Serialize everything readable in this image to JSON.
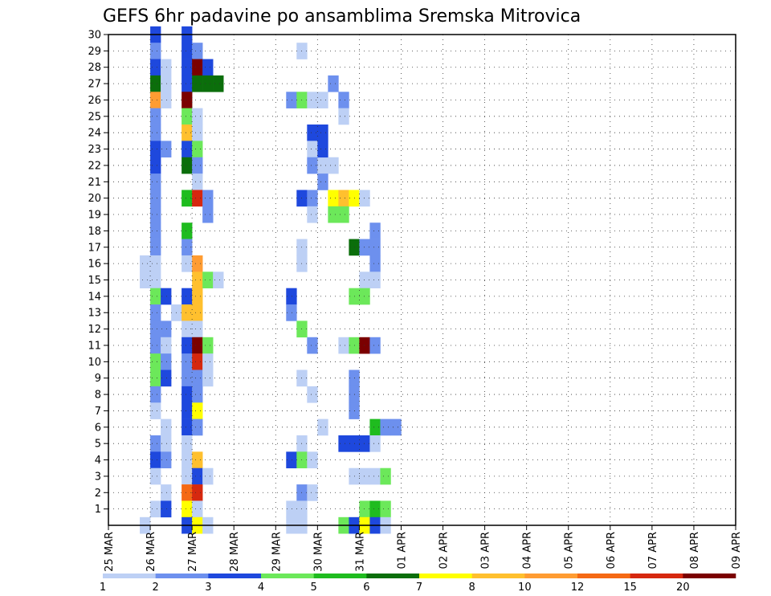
{
  "chart_data": {
    "type": "heatmap",
    "title": "GEFS 6hr padavine po ansamblima Sremska Mitrovica",
    "xlabel": "",
    "ylabel": "",
    "x_ticks": [
      "25 MAR",
      "26 MAR",
      "27 MAR",
      "28 MAR",
      "29 MAR",
      "30 MAR",
      "31 MAR",
      "01 APR",
      "02 APR",
      "03 APR",
      "04 APR",
      "05 APR",
      "06 APR",
      "07 APR",
      "08 APR",
      "09 APR"
    ],
    "time_steps_per_day": 4,
    "y_range": [
      1,
      30
    ],
    "y_ticks": [
      1,
      2,
      3,
      4,
      5,
      6,
      7,
      8,
      9,
      10,
      11,
      12,
      13,
      14,
      15,
      16,
      17,
      18,
      19,
      20,
      21,
      22,
      23,
      24,
      25,
      26,
      27,
      28,
      29,
      30
    ],
    "grid": true,
    "colorbar": {
      "labels": [
        "1",
        "2",
        "3",
        "4",
        "5",
        "6",
        "7",
        "8",
        "10",
        "12",
        "15",
        "20"
      ],
      "colors": [
        "#bdd0f5",
        "#6d90ee",
        "#1e48dd",
        "#6ce85a",
        "#1fbc1f",
        "#0b6e0b",
        "#ffff00",
        "#ffc02e",
        "#ff9c32",
        "#f56914",
        "#d6280f",
        "#7b0000"
      ]
    },
    "cells": [
      [
        30,
        4,
        2
      ],
      [
        29,
        4,
        1
      ],
      [
        28,
        4,
        2
      ],
      [
        28,
        5,
        0
      ],
      [
        27,
        4,
        5
      ],
      [
        27,
        5,
        0
      ],
      [
        26,
        4,
        8
      ],
      [
        26,
        5,
        0
      ],
      [
        25,
        4,
        1
      ],
      [
        24,
        4,
        1
      ],
      [
        23,
        4,
        2
      ],
      [
        23,
        5,
        1
      ],
      [
        22,
        4,
        2
      ],
      [
        21,
        4,
        1
      ],
      [
        20,
        4,
        1
      ],
      [
        19,
        4,
        1
      ],
      [
        18,
        4,
        1
      ],
      [
        17,
        4,
        1
      ],
      [
        16,
        4,
        0
      ],
      [
        16,
        3,
        0
      ],
      [
        15,
        3,
        0
      ],
      [
        15,
        4,
        0
      ],
      [
        14,
        4,
        3
      ],
      [
        14,
        5,
        2
      ],
      [
        13,
        4,
        1
      ],
      [
        12,
        4,
        1
      ],
      [
        12,
        5,
        1
      ],
      [
        11,
        4,
        1
      ],
      [
        11,
        5,
        0
      ],
      [
        10,
        4,
        3
      ],
      [
        10,
        5,
        1
      ],
      [
        9,
        4,
        3
      ],
      [
        9,
        5,
        2
      ],
      [
        8,
        4,
        1
      ],
      [
        7,
        4,
        0
      ],
      [
        6,
        5,
        0
      ],
      [
        5,
        4,
        1
      ],
      [
        5,
        5,
        0
      ],
      [
        4,
        4,
        2
      ],
      [
        4,
        5,
        1
      ],
      [
        3,
        4,
        0
      ],
      [
        2,
        5,
        0
      ],
      [
        1,
        4,
        0
      ],
      [
        1,
        5,
        2
      ],
      [
        0,
        3,
        0
      ],
      [
        30,
        7,
        2
      ],
      [
        29,
        7,
        2
      ],
      [
        29,
        8,
        1
      ],
      [
        28,
        7,
        2
      ],
      [
        28,
        8,
        11
      ],
      [
        28,
        9,
        2
      ],
      [
        27,
        7,
        2
      ],
      [
        27,
        8,
        5
      ],
      [
        27,
        9,
        5
      ],
      [
        27,
        10,
        5
      ],
      [
        26,
        7,
        11
      ],
      [
        25,
        7,
        3
      ],
      [
        25,
        8,
        0
      ],
      [
        24,
        7,
        7
      ],
      [
        24,
        8,
        0
      ],
      [
        23,
        7,
        2
      ],
      [
        23,
        8,
        3
      ],
      [
        22,
        7,
        5
      ],
      [
        22,
        8,
        1
      ],
      [
        21,
        8,
        0
      ],
      [
        20,
        7,
        4
      ],
      [
        20,
        8,
        10
      ],
      [
        20,
        9,
        1
      ],
      [
        19,
        9,
        1
      ],
      [
        18,
        7,
        4
      ],
      [
        17,
        7,
        1
      ],
      [
        16,
        7,
        0
      ],
      [
        16,
        8,
        8
      ],
      [
        15,
        8,
        7
      ],
      [
        15,
        9,
        3
      ],
      [
        15,
        10,
        0
      ],
      [
        14,
        7,
        2
      ],
      [
        14,
        8,
        7
      ],
      [
        13,
        6,
        0
      ],
      [
        13,
        7,
        7
      ],
      [
        13,
        8,
        7
      ],
      [
        12,
        7,
        0
      ],
      [
        12,
        8,
        0
      ],
      [
        11,
        7,
        2
      ],
      [
        11,
        8,
        11
      ],
      [
        11,
        9,
        3
      ],
      [
        10,
        7,
        1
      ],
      [
        10,
        8,
        10
      ],
      [
        10,
        9,
        0
      ],
      [
        9,
        7,
        1
      ],
      [
        9,
        8,
        1
      ],
      [
        9,
        9,
        0
      ],
      [
        8,
        7,
        2
      ],
      [
        8,
        8,
        1
      ],
      [
        7,
        7,
        2
      ],
      [
        7,
        8,
        6
      ],
      [
        6,
        7,
        2
      ],
      [
        6,
        8,
        1
      ],
      [
        5,
        7,
        0
      ],
      [
        4,
        7,
        0
      ],
      [
        4,
        8,
        7
      ],
      [
        3,
        7,
        0
      ],
      [
        3,
        8,
        2
      ],
      [
        3,
        9,
        0
      ],
      [
        2,
        7,
        9
      ],
      [
        2,
        8,
        10
      ],
      [
        1,
        7,
        6
      ],
      [
        1,
        8,
        0
      ],
      [
        0,
        7,
        2
      ],
      [
        0,
        8,
        6
      ],
      [
        0,
        9,
        0
      ],
      [
        29,
        18,
        0
      ],
      [
        26,
        17,
        1
      ],
      [
        26,
        18,
        3
      ],
      [
        26,
        19,
        0
      ],
      [
        26,
        20,
        0
      ],
      [
        24,
        19,
        2
      ],
      [
        23,
        19,
        0
      ],
      [
        22,
        19,
        1
      ],
      [
        22,
        20,
        0
      ],
      [
        20,
        18,
        2
      ],
      [
        20,
        19,
        1
      ],
      [
        19,
        19,
        0
      ],
      [
        17,
        18,
        0
      ],
      [
        16,
        18,
        0
      ],
      [
        14,
        17,
        2
      ],
      [
        13,
        17,
        1
      ],
      [
        12,
        18,
        3
      ],
      [
        11,
        19,
        1
      ],
      [
        9,
        18,
        0
      ],
      [
        8,
        19,
        0
      ],
      [
        6,
        20,
        0
      ],
      [
        5,
        18,
        0
      ],
      [
        4,
        17,
        2
      ],
      [
        4,
        18,
        3
      ],
      [
        4,
        19,
        0
      ],
      [
        2,
        18,
        1
      ],
      [
        2,
        19,
        0
      ],
      [
        1,
        17,
        0
      ],
      [
        1,
        18,
        0
      ],
      [
        0,
        17,
        0
      ],
      [
        0,
        18,
        0
      ],
      [
        27,
        21,
        1
      ],
      [
        26,
        22,
        1
      ],
      [
        25,
        22,
        0
      ],
      [
        24,
        20,
        2
      ],
      [
        23,
        20,
        2
      ],
      [
        22,
        21,
        0
      ],
      [
        21,
        20,
        1
      ],
      [
        20,
        21,
        6
      ],
      [
        20,
        22,
        7
      ],
      [
        20,
        23,
        6
      ],
      [
        20,
        24,
        0
      ],
      [
        19,
        21,
        3
      ],
      [
        19,
        22,
        3
      ],
      [
        18,
        25,
        1
      ],
      [
        17,
        23,
        5
      ],
      [
        17,
        24,
        1
      ],
      [
        17,
        25,
        1
      ],
      [
        16,
        25,
        1
      ],
      [
        15,
        24,
        0
      ],
      [
        15,
        25,
        0
      ],
      [
        14,
        23,
        3
      ],
      [
        14,
        24,
        3
      ],
      [
        11,
        22,
        0
      ],
      [
        11,
        23,
        3
      ],
      [
        11,
        24,
        11
      ],
      [
        11,
        25,
        1
      ],
      [
        9,
        23,
        1
      ],
      [
        8,
        23,
        1
      ],
      [
        7,
        23,
        1
      ],
      [
        6,
        25,
        4
      ],
      [
        6,
        26,
        1
      ],
      [
        6,
        27,
        1
      ],
      [
        5,
        22,
        2
      ],
      [
        5,
        23,
        2
      ],
      [
        5,
        24,
        2
      ],
      [
        5,
        25,
        0
      ],
      [
        3,
        23,
        0
      ],
      [
        3,
        24,
        0
      ],
      [
        3,
        25,
        0
      ],
      [
        3,
        26,
        3
      ],
      [
        1,
        24,
        3
      ],
      [
        1,
        25,
        4
      ],
      [
        1,
        26,
        3
      ],
      [
        0,
        22,
        3
      ],
      [
        0,
        23,
        2
      ],
      [
        0,
        24,
        6
      ],
      [
        0,
        25,
        2
      ],
      [
        0,
        26,
        0
      ]
    ]
  }
}
